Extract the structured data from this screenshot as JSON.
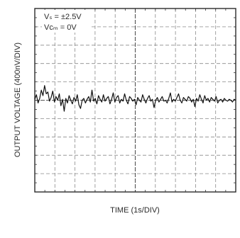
{
  "chart_data": {
    "type": "line",
    "title": "",
    "xlabel": "TIME (1s/DIV)",
    "ylabel": "OUTPUT VOLTAGE (400nV/DIV)",
    "annotations": [
      "Vₛ = ±2.5V",
      "Vᴄₘ = 0V"
    ],
    "x_divisions": 10,
    "y_divisions": 10,
    "xlim": [
      0,
      10
    ],
    "ylim": [
      0,
      10
    ],
    "grid": true,
    "series": [
      {
        "values": [
          5.05,
          5.3,
          4.85,
          5.1,
          5.55,
          5.25,
          5.8,
          5.35,
          5.45,
          4.95,
          5.15,
          5.5,
          4.9,
          5.2,
          5.0,
          5.35,
          4.7,
          5.05,
          4.4,
          5.1,
          4.85,
          5.25,
          5.0,
          4.8,
          5.15,
          4.95,
          5.3,
          4.75,
          4.55,
          5.0,
          5.1,
          4.85,
          5.05,
          5.2,
          4.9,
          5.55,
          4.95,
          5.1,
          4.8,
          5.25,
          5.05,
          4.9,
          5.3,
          4.95,
          5.1,
          5.2,
          4.8,
          5.05,
          5.4,
          4.9,
          5.15,
          5.25,
          4.85,
          5.05,
          4.95,
          5.35,
          5.0,
          4.8,
          5.2,
          5.1,
          4.95,
          5.05,
          4.75,
          5.15,
          5.0,
          4.9,
          5.3,
          5.05,
          4.85,
          5.1,
          5.25,
          4.95,
          5.05,
          4.6,
          5.0,
          5.15,
          4.9,
          5.05,
          5.2,
          4.95,
          5.0,
          4.85,
          5.1,
          5.4,
          4.9,
          5.05,
          4.95,
          5.15,
          5.35,
          5.0,
          4.85,
          5.15,
          5.05,
          4.95,
          5.2,
          5.1,
          4.9,
          5.05,
          4.65,
          5.1,
          4.95,
          5.3,
          5.05,
          4.85,
          5.25,
          5.0,
          5.1,
          4.9,
          5.15,
          5.05,
          4.95,
          5.2,
          4.85,
          5.0,
          5.05,
          4.9,
          5.1,
          5.0,
          4.95,
          5.05,
          5.0,
          4.9,
          5.05,
          5.0
        ]
      }
    ]
  }
}
